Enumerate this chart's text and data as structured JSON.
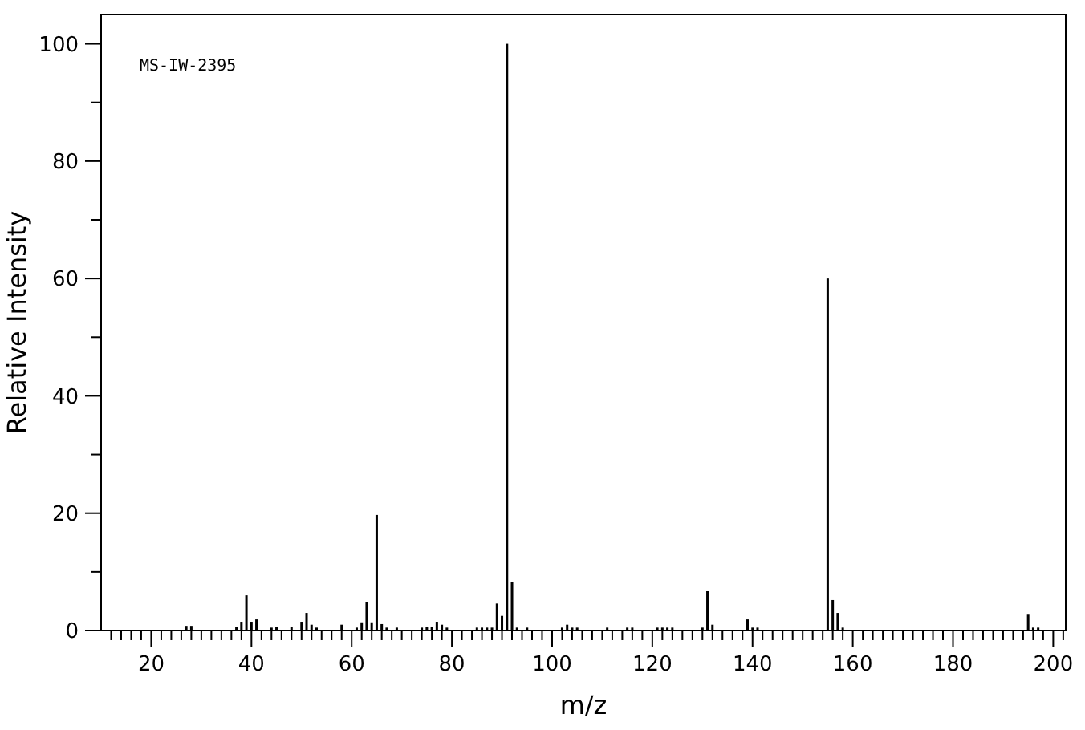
{
  "chart_data": {
    "type": "bar",
    "xlabel": "m/z",
    "ylabel": "Relative Intensity",
    "color": "#000000",
    "annotations": [
      "MS-IW-2395"
    ],
    "x": [
      27,
      28,
      37,
      38,
      39,
      40,
      41,
      44,
      45,
      48,
      50,
      51,
      52,
      53,
      58,
      61,
      62,
      63,
      64,
      65,
      66,
      67,
      69,
      74,
      75,
      76,
      77,
      78,
      79,
      85,
      86,
      87,
      88,
      89,
      90,
      91,
      92,
      93,
      95,
      102,
      103,
      104,
      105,
      111,
      115,
      116,
      121,
      122,
      123,
      124,
      130,
      131,
      132,
      139,
      140,
      141,
      155,
      156,
      157,
      158,
      195,
      196,
      197
    ],
    "values": [
      0.8,
      0.8,
      0.6,
      1.5,
      6,
      1.5,
      1.9,
      0.5,
      0.6,
      0.6,
      1.5,
      3,
      1,
      0.5,
      1,
      0.5,
      1.4,
      4.9,
      1.4,
      19.7,
      1.1,
      0.5,
      0.5,
      0.5,
      0.6,
      0.6,
      1.5,
      1,
      0.5,
      0.5,
      0.5,
      0.5,
      0.5,
      4.6,
      2.5,
      100,
      8.3,
      0.5,
      0.5,
      0.5,
      1,
      0.5,
      0.5,
      0.5,
      0.5,
      0.5,
      0.5,
      0.5,
      0.5,
      0.5,
      0.5,
      6.7,
      1,
      1.9,
      0.5,
      0.5,
      60,
      5.2,
      3,
      0.5,
      2.7,
      0.5,
      0.5
    ],
    "xlim": [
      10,
      202.5
    ],
    "ylim": [
      0,
      105
    ],
    "xticks": [
      {
        "value": 12,
        "label": null
      },
      {
        "value": 14,
        "label": null
      },
      {
        "value": 16,
        "label": null
      },
      {
        "value": 18,
        "label": null
      },
      20,
      {
        "value": 22,
        "label": null
      },
      {
        "value": 24,
        "label": null
      },
      {
        "value": 26,
        "label": null
      },
      {
        "value": 28,
        "label": null
      },
      {
        "value": 30,
        "label": null
      },
      {
        "value": 32,
        "label": null
      },
      {
        "value": 34,
        "label": null
      },
      {
        "value": 36,
        "label": null
      },
      {
        "value": 38,
        "label": null
      },
      40,
      {
        "value": 42,
        "label": null
      },
      {
        "value": 44,
        "label": null
      },
      {
        "value": 46,
        "label": null
      },
      {
        "value": 48,
        "label": null
      },
      {
        "value": 50,
        "label": null
      },
      {
        "value": 52,
        "label": null
      },
      {
        "value": 54,
        "label": null
      },
      {
        "value": 56,
        "label": null
      },
      {
        "value": 58,
        "label": null
      },
      60,
      {
        "value": 62,
        "label": null
      },
      {
        "value": 64,
        "label": null
      },
      {
        "value": 66,
        "label": null
      },
      {
        "value": 68,
        "label": null
      },
      {
        "value": 70,
        "label": null
      },
      {
        "value": 72,
        "label": null
      },
      {
        "value": 74,
        "label": null
      },
      {
        "value": 76,
        "label": null
      },
      {
        "value": 78,
        "label": null
      },
      80,
      {
        "value": 82,
        "label": null
      },
      {
        "value": 84,
        "label": null
      },
      {
        "value": 86,
        "label": null
      },
      {
        "value": 88,
        "label": null
      },
      {
        "value": 90,
        "label": null
      },
      {
        "value": 92,
        "label": null
      },
      {
        "value": 94,
        "label": null
      },
      {
        "value": 96,
        "label": null
      },
      {
        "value": 98,
        "label": null
      },
      100,
      {
        "value": 102,
        "label": null
      },
      {
        "value": 104,
        "label": null
      },
      {
        "value": 106,
        "label": null
      },
      {
        "value": 108,
        "label": null
      },
      {
        "value": 110,
        "label": null
      },
      {
        "value": 112,
        "label": null
      },
      {
        "value": 114,
        "label": null
      },
      {
        "value": 116,
        "label": null
      },
      {
        "value": 118,
        "label": null
      },
      120,
      {
        "value": 122,
        "label": null
      },
      {
        "value": 124,
        "label": null
      },
      {
        "value": 126,
        "label": null
      },
      {
        "value": 128,
        "label": null
      },
      {
        "value": 130,
        "label": null
      },
      {
        "value": 132,
        "label": null
      },
      {
        "value": 134,
        "label": null
      },
      {
        "value": 136,
        "label": null
      },
      {
        "value": 138,
        "label": null
      },
      140,
      {
        "value": 142,
        "label": null
      },
      {
        "value": 144,
        "label": null
      },
      {
        "value": 146,
        "label": null
      },
      {
        "value": 148,
        "label": null
      },
      {
        "value": 150,
        "label": null
      },
      {
        "value": 152,
        "label": null
      },
      {
        "value": 154,
        "label": null
      },
      {
        "value": 156,
        "label": null
      },
      {
        "value": 158,
        "label": null
      },
      160,
      {
        "value": 162,
        "label": null
      },
      {
        "value": 164,
        "label": null
      },
      {
        "value": 166,
        "label": null
      },
      {
        "value": 168,
        "label": null
      },
      {
        "value": 170,
        "label": null
      },
      {
        "value": 172,
        "label": null
      },
      {
        "value": 174,
        "label": null
      },
      {
        "value": 176,
        "label": null
      },
      {
        "value": 178,
        "label": null
      },
      180,
      {
        "value": 182,
        "label": null
      },
      {
        "value": 184,
        "label": null
      },
      {
        "value": 186,
        "label": null
      },
      {
        "value": 188,
        "label": null
      },
      {
        "value": 190,
        "label": null
      },
      {
        "value": 192,
        "label": null
      },
      {
        "value": 194,
        "label": null
      },
      {
        "value": 196,
        "label": null
      },
      {
        "value": 198,
        "label": null
      },
      200,
      {
        "value": 202,
        "label": null
      }
    ],
    "yticks": [
      0,
      {
        "value": 10,
        "label": null
      },
      20,
      {
        "value": 30,
        "label": null
      },
      40,
      {
        "value": 50,
        "label": null
      },
      60,
      {
        "value": 70,
        "label": null
      },
      80,
      {
        "value": 90,
        "label": null
      },
      100
    ],
    "grid": false
  }
}
